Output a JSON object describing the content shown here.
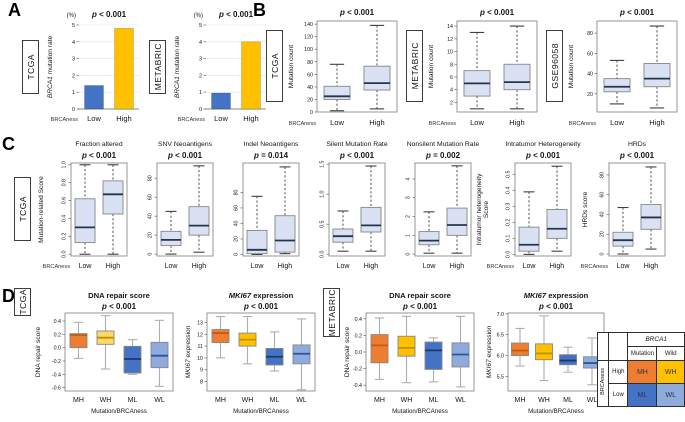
{
  "colors": {
    "bar_blue": "#4472C4",
    "bar_gold": "#FFC000",
    "box_fill": "#D9E1F2",
    "median_dark": "#24364F",
    "mh": "#ED7D31",
    "wh": "#FFC000",
    "wh_light": "#FFD966",
    "ml": "#4472C4",
    "wl": "#8FAADC",
    "mh_median": "#C55A11",
    "wh_median": "#BF9000",
    "ml_median": "#1F3864",
    "wl_median": "#2F5597"
  },
  "panels": {
    "A": {
      "label": "A",
      "charts": [
        {
          "name": "bar-tcga-brca1-mutation-rate",
          "type": "bar",
          "dataset": "TCGA",
          "unit": "(%)",
          "p": "p < 0.001",
          "ylabel": [
            [
              {
                "t": "BRCA1",
                "i": true
              },
              {
                "t": " mutation rate"
              }
            ]
          ],
          "ylim": [
            0,
            5
          ],
          "yticks": [
            0,
            1,
            2,
            3,
            4,
            5
          ],
          "categories": [
            "Low",
            "High"
          ],
          "x_prefix": "BRCAness",
          "values": [
            1.4,
            4.8
          ],
          "colors": [
            "#4472C4",
            "#FFC000"
          ]
        },
        {
          "name": "bar-metabric-brca1-mutation-rate",
          "type": "bar",
          "dataset": "METABRIC",
          "unit": "(%)",
          "p": "p < 0.001",
          "ylabel": [
            [
              {
                "t": "BRCA1",
                "i": true
              },
              {
                "t": " mutation rate"
              }
            ]
          ],
          "ylim": [
            0,
            5
          ],
          "yticks": [
            0,
            1,
            2,
            3,
            4,
            5
          ],
          "categories": [
            "Low",
            "High"
          ],
          "x_prefix": "BRCAness",
          "values": [
            0.95,
            4.0
          ],
          "colors": [
            "#4472C4",
            "#FFC000"
          ]
        }
      ]
    },
    "B": {
      "label": "B",
      "charts": [
        {
          "name": "box-tcga-mutation-count",
          "type": "box",
          "dataset": "TCGA",
          "p": "p < 0.001",
          "ylabel": [
            [
              {
                "t": "Mutation count"
              }
            ]
          ],
          "ylim": [
            0,
            145
          ],
          "yticks": [
            0,
            20,
            40,
            60,
            80,
            100,
            120,
            140
          ],
          "categories": [
            "Low",
            "High"
          ],
          "x_prefix": "BRCAness",
          "boxes": [
            {
              "lo": 2,
              "q1": 20,
              "med": 25,
              "q3": 41,
              "hi": 76
            },
            {
              "lo": 5,
              "q1": 35,
              "med": 46,
              "q3": 73,
              "hi": 138
            }
          ]
        },
        {
          "name": "box-metabric-mutation-count",
          "type": "box",
          "dataset": "METABRIC",
          "p": "p < 0.001",
          "ylabel": [
            [
              {
                "t": "Mutation count"
              }
            ]
          ],
          "ylim": [
            0.5,
            14.8
          ],
          "yticks": [
            2,
            4,
            6,
            8,
            10,
            12,
            14
          ],
          "categories": [
            "Low",
            "High"
          ],
          "x_prefix": "BRCAness",
          "boxes": [
            {
              "lo": 1,
              "q1": 3,
              "med": 5,
              "q3": 7,
              "hi": 13
            },
            {
              "lo": 1,
              "q1": 4,
              "med": 5.2,
              "q3": 8,
              "hi": 14
            }
          ]
        },
        {
          "name": "box-gse96058-mutation-count",
          "type": "box",
          "dataset": "GSE96058",
          "p": "p < 0.001",
          "ylabel": [
            [
              {
                "t": "Mutation count"
              }
            ]
          ],
          "ylim": [
            2,
            92
          ],
          "yticks": [
            20,
            40,
            60,
            80
          ],
          "categories": [
            "Low",
            "High"
          ],
          "x_prefix": "BRCAness",
          "boxes": [
            {
              "lo": 10,
              "q1": 22,
              "med": 27,
              "q3": 35,
              "hi": 53
            },
            {
              "lo": 6,
              "q1": 27,
              "med": 35,
              "q3": 50,
              "hi": 87
            }
          ]
        }
      ]
    },
    "C": {
      "label": "C",
      "dataset": "TCGA",
      "charts": [
        {
          "name": "box-fraction-altered",
          "type": "box",
          "title": [
            {
              "t": "Fraction altered"
            }
          ],
          "p": "p < 0.001",
          "ylabel": [
            [
              {
                "t": "Mutation-related Score"
              }
            ]
          ],
          "ylim": [
            -0.02,
            1.02
          ],
          "yticks": [
            0,
            0.2,
            0.4,
            0.6,
            0.8,
            1.0
          ],
          "ytick_labels": [
            "0.0",
            "0.2",
            "0.4",
            "0.6",
            "0.8",
            "1.0"
          ],
          "categories": [
            "Low",
            "High"
          ],
          "x_prefix": "BRCAness",
          "boxes": [
            {
              "lo": 0,
              "q1": 0.13,
              "med": 0.3,
              "q3": 0.62,
              "hi": 1.0
            },
            {
              "lo": 0,
              "q1": 0.45,
              "med": 0.67,
              "q3": 0.82,
              "hi": 1.0
            }
          ]
        },
        {
          "name": "box-snv-neoantigens",
          "type": "box",
          "title": [
            {
              "t": "SNV Neoantigens"
            }
          ],
          "p": "p < 0.001",
          "ylim": [
            -2,
            96
          ],
          "yticks": [
            0,
            20,
            40,
            60,
            80
          ],
          "categories": [
            "Low",
            "High"
          ],
          "boxes": [
            {
              "lo": 0,
              "q1": 9,
              "med": 15,
              "q3": 24,
              "hi": 45
            },
            {
              "lo": 2,
              "q1": 20,
              "med": 30,
              "q3": 50,
              "hi": 93
            }
          ]
        },
        {
          "name": "box-indel-neoantigens",
          "type": "box",
          "title": [
            {
              "t": "Indel Neoantigens"
            }
          ],
          "p": "p = 0.014",
          "ylim": [
            -2,
            118
          ],
          "yticks": [
            0,
            20,
            40,
            60,
            80
          ],
          "categories": [
            "Low",
            "High"
          ],
          "boxes": [
            {
              "lo": 0,
              "q1": 1,
              "med": 6,
              "q3": 31,
              "hi": 75
            },
            {
              "lo": 1,
              "q1": 3,
              "med": 18,
              "q3": 50,
              "hi": 113
            }
          ]
        },
        {
          "name": "box-silent-mutation-rate",
          "type": "box",
          "title": [
            {
              "t": "Silent Mutation Rate"
            }
          ],
          "p": "p < 0.001",
          "ylim": [
            -0.03,
            1.52
          ],
          "yticks": [
            0,
            0.5,
            1.0,
            1.5
          ],
          "ytick_labels": [
            "0.0",
            "0.5",
            "1.0",
            "1.5"
          ],
          "categories": [
            "Low",
            "High"
          ],
          "boxes": [
            {
              "lo": 0.05,
              "q1": 0.2,
              "med": 0.3,
              "q3": 0.42,
              "hi": 0.72
            },
            {
              "lo": 0.05,
              "q1": 0.37,
              "med": 0.48,
              "q3": 0.78,
              "hi": 1.47
            }
          ]
        },
        {
          "name": "box-nonsilent-mutation-rate",
          "type": "box",
          "title": [
            {
              "t": "Nonsilent Mutation Rate"
            }
          ],
          "p": "p = 0.002",
          "ylim": [
            -0.1,
            4.85
          ],
          "yticks": [
            0,
            1,
            2,
            3,
            4
          ],
          "categories": [
            "Low",
            "High"
          ],
          "boxes": [
            {
              "lo": 0.05,
              "q1": 0.5,
              "med": 0.72,
              "q3": 1.2,
              "hi": 2.25
            },
            {
              "lo": 0.05,
              "q1": 1.0,
              "med": 1.55,
              "q3": 2.45,
              "hi": 4.7
            }
          ]
        },
        {
          "name": "box-intratumor-heterogeneity",
          "type": "box",
          "title": [
            {
              "t": "Intratumor Heterogeneity"
            }
          ],
          "p": "p < 0.001",
          "ylabel": [
            [
              {
                "t": "Intratumor heterogeneity"
              }
            ],
            [
              {
                "t": "Score"
              }
            ]
          ],
          "ylim": [
            -0.01,
            0.57
          ],
          "yticks": [
            0,
            0.1,
            0.2,
            0.3,
            0.4,
            0.5
          ],
          "ytick_labels": [
            "0.0",
            "0.1",
            "0.2",
            "0.3",
            "0.4",
            "0.5"
          ],
          "categories": [
            "Low",
            "High"
          ],
          "x_prefix": "BRCAness",
          "boxes": [
            {
              "lo": 0,
              "q1": 0.02,
              "med": 0.06,
              "q3": 0.17,
              "hi": 0.39
            },
            {
              "lo": 0.02,
              "q1": 0.1,
              "med": 0.16,
              "q3": 0.28,
              "hi": 0.55
            }
          ]
        },
        {
          "name": "box-hrds",
          "type": "box",
          "title": [
            {
              "t": "HRDs"
            }
          ],
          "p": "p < 0.001",
          "ylabel": [
            [
              {
                "t": "HRDs score"
              }
            ]
          ],
          "ylim": [
            -2,
            92
          ],
          "yticks": [
            0,
            20,
            40,
            60,
            80
          ],
          "categories": [
            "Low",
            "High"
          ],
          "x_prefix": "BRCAness",
          "boxes": [
            {
              "lo": 0,
              "q1": 8,
              "med": 14,
              "q3": 22,
              "hi": 47
            },
            {
              "lo": 5,
              "q1": 25,
              "med": 37,
              "q3": 50,
              "hi": 88
            }
          ]
        }
      ]
    },
    "D": {
      "label": "D",
      "charts": [
        {
          "name": "box-tcga-dna-repair-score",
          "type": "box",
          "dataset": "TCGA",
          "title": [
            {
              "t": "DNA repair score"
            }
          ],
          "p": "p < 0.001",
          "ylabel": [
            [
              {
                "t": "DNA repair score"
              }
            ]
          ],
          "ylim": [
            -0.65,
            0.52
          ],
          "yticks": [
            0.4,
            0.2,
            0,
            -0.2,
            -0.4,
            -0.6
          ],
          "ytick_labels": [
            "0.4",
            "0.2",
            "0.0",
            "-0.2",
            "-0.4",
            "-0.6"
          ],
          "categories": [
            "MH",
            "WH",
            "ML",
            "WL"
          ],
          "xlabel": "Mutation/BRCAness",
          "boxes": [
            {
              "lo": -0.16,
              "q1": 0.0,
              "med": 0.19,
              "q3": 0.21,
              "hi": 0.38,
              "fill": "#ED7D31",
              "medc": "#C55A11"
            },
            {
              "lo": -0.32,
              "q1": 0.05,
              "med": 0.15,
              "q3": 0.25,
              "hi": 0.48,
              "fill": "#FFD966",
              "medc": "#BF9000"
            },
            {
              "lo": -0.4,
              "q1": -0.38,
              "med": -0.17,
              "q3": 0.02,
              "hi": 0.12,
              "fill": "#4472C4",
              "medc": "#1F3864"
            },
            {
              "lo": -0.58,
              "q1": -0.3,
              "med": -0.12,
              "q3": 0.08,
              "hi": 0.41,
              "fill": "#8FAADC",
              "medc": "#2F5597"
            }
          ]
        },
        {
          "name": "box-tcga-mki67-expression",
          "type": "box",
          "title": [
            {
              "t": "MKI67",
              "i": true
            },
            {
              "t": " expression"
            }
          ],
          "p": "p < 0.001",
          "ylabel": [
            [
              {
                "t": "MKI67",
                "i": true
              },
              {
                "t": " expression"
              }
            ]
          ],
          "ylim": [
            7.2,
            13.8
          ],
          "yticks": [
            8,
            9,
            10,
            11,
            12,
            13
          ],
          "categories": [
            "MH",
            "WH",
            "ML",
            "WL"
          ],
          "xlabel": "Mutation/BRCAness",
          "boxes": [
            {
              "lo": 10.0,
              "q1": 11.3,
              "med": 12.1,
              "q3": 12.4,
              "hi": 13.5,
              "fill": "#ED7D31",
              "medc": "#C55A11"
            },
            {
              "lo": 9.5,
              "q1": 11.0,
              "med": 11.55,
              "q3": 12.1,
              "hi": 13.5,
              "fill": "#FFC000",
              "medc": "#BF9000"
            },
            {
              "lo": 8.9,
              "q1": 9.4,
              "med": 10.1,
              "q3": 10.8,
              "hi": 12.2,
              "fill": "#4472C4",
              "medc": "#1F3864"
            },
            {
              "lo": 7.3,
              "q1": 9.5,
              "med": 10.35,
              "q3": 11.1,
              "hi": 13.3,
              "fill": "#8FAADC",
              "medc": "#2F5597"
            }
          ]
        },
        {
          "name": "box-metabric-dna-repair-score",
          "type": "box",
          "dataset": "METABRIC",
          "title": [
            {
              "t": "DNA repair score"
            }
          ],
          "p": "p < 0.001",
          "ylabel": [
            [
              {
                "t": "DNA repair score"
              }
            ]
          ],
          "ylim": [
            -0.47,
            0.47
          ],
          "yticks": [
            0.4,
            0.2,
            0,
            -0.2,
            -0.4
          ],
          "ytick_labels": [
            "0.4",
            "0.2",
            "0.0",
            "-0.2",
            "-0.4"
          ],
          "categories": [
            "MH",
            "WH",
            "ML",
            "WL"
          ],
          "xlabel": "Mutation/BRCAness",
          "boxes": [
            {
              "lo": -0.33,
              "q1": -0.13,
              "med": 0.08,
              "q3": 0.21,
              "hi": 0.41,
              "fill": "#ED7D31",
              "medc": "#C55A11"
            },
            {
              "lo": -0.37,
              "q1": -0.05,
              "med": 0.05,
              "q3": 0.19,
              "hi": 0.43,
              "fill": "#FFC000",
              "medc": "#BF9000"
            },
            {
              "lo": -0.36,
              "q1": -0.21,
              "med": 0.02,
              "q3": 0.12,
              "hi": 0.17,
              "fill": "#4472C4",
              "medc": "#1F3864"
            },
            {
              "lo": -0.42,
              "q1": -0.18,
              "med": -0.03,
              "q3": 0.11,
              "hi": 0.43,
              "fill": "#8FAADC",
              "medc": "#2F5597"
            }
          ]
        },
        {
          "name": "box-metabric-mki67-expression",
          "type": "box",
          "title": [
            {
              "t": "MKI67",
              "i": true
            },
            {
              "t": " expression"
            }
          ],
          "p": "p < 0.001",
          "ylabel": [
            [
              {
                "t": "MKI67",
                "i": true
              },
              {
                "t": " expression"
              }
            ]
          ],
          "ylim": [
            5.15,
            7.02
          ],
          "yticks": [
            7.0,
            6.5,
            6.0,
            5.5
          ],
          "ytick_labels": [
            "7.0",
            "6.5",
            "6.0",
            "5.5"
          ],
          "categories": [
            "MH",
            "WH",
            "ML",
            "WL"
          ],
          "xlabel": "Mutation/BRCAness",
          "boxes": [
            {
              "lo": 5.75,
              "q1": 6.0,
              "med": 6.12,
              "q3": 6.3,
              "hi": 6.65,
              "fill": "#ED7D31",
              "medc": "#C55A11"
            },
            {
              "lo": 5.4,
              "q1": 5.9,
              "med": 6.05,
              "q3": 6.28,
              "hi": 6.95,
              "fill": "#FFC000",
              "medc": "#BF9000"
            },
            {
              "lo": 5.6,
              "q1": 5.78,
              "med": 5.88,
              "q3": 6.02,
              "hi": 6.2,
              "fill": "#4472C4",
              "medc": "#1F3864"
            },
            {
              "lo": 5.3,
              "q1": 5.7,
              "med": 5.82,
              "q3": 5.97,
              "hi": 6.42,
              "fill": "#8FAADC",
              "medc": "#2F5597"
            }
          ]
        }
      ]
    }
  },
  "legend_table": {
    "title": "BRCA1",
    "cols": [
      "Mutation",
      "Wild"
    ],
    "row_label": "BRCAness",
    "rows": [
      {
        "name": "High",
        "cells": [
          {
            "t": "MH",
            "bg": "#ED7D31"
          },
          {
            "t": "WH",
            "bg": "#FFC000"
          }
        ]
      },
      {
        "name": "Low",
        "cells": [
          {
            "t": "ML",
            "bg": "#4472C4"
          },
          {
            "t": "WL",
            "bg": "#8FAADC"
          }
        ]
      }
    ]
  }
}
